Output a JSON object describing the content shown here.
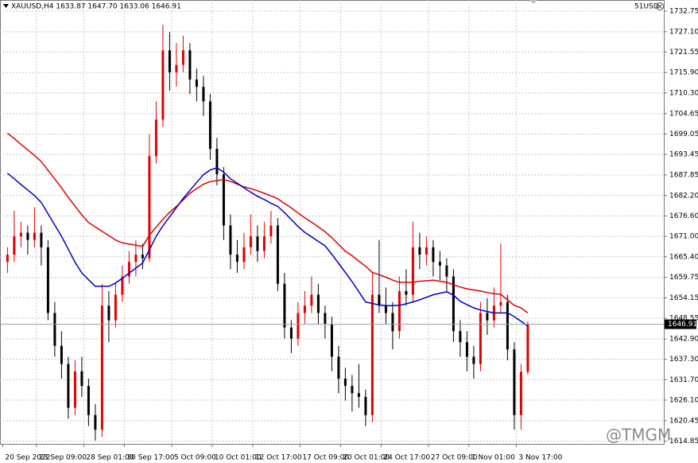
{
  "chart_data": {
    "type": "candlestick",
    "title": "XAUUSD,H4 1633.87 1647.70 1633.06 1646.91",
    "account_label": "51USD",
    "watermark": "@TMGM",
    "up_color": "#e00000",
    "down_color": "#000000",
    "grid": true,
    "ylim": [
      1614.1,
      1735.8
    ],
    "yticks": [
      1732.75,
      {
        "value": 1727.1,
        "label": "1727.10"
      },
      1721.55,
      {
        "value": 1715.9,
        "label": "1715.90"
      },
      {
        "value": 1710.3,
        "label": "1710.30"
      },
      1704.65,
      1699.05,
      1693.45,
      1687.85,
      {
        "value": 1682.2,
        "label": "1682.20"
      },
      {
        "value": 1676.6,
        "label": "1676.60"
      },
      {
        "value": 1671,
        "label": "1671.00"
      },
      {
        "value": 1665.4,
        "label": "1665.40"
      },
      1659.75,
      1654.15,
      1648.55,
      {
        "value": 1642.9,
        "label": "1642.90"
      },
      {
        "value": 1637.3,
        "label": "1637.30"
      },
      {
        "value": 1631.7,
        "label": "1631.70"
      },
      {
        "value": 1626.1,
        "label": "1626.10"
      },
      1620.45,
      1614.85
    ],
    "categories": [
      "20 Sep 2022",
      null,
      null,
      null,
      null,
      "23 Sep 09:00",
      null,
      null,
      null,
      null,
      null,
      null,
      "28 Sep 01:00",
      null,
      null,
      null,
      null,
      null,
      "30 Sep 17:00",
      null,
      null,
      null,
      null,
      null,
      null,
      "5 Oct 09:00",
      null,
      null,
      null,
      null,
      null,
      "10 Oct 01:00",
      null,
      null,
      null,
      null,
      null,
      "12 Oct 17:00",
      null,
      null,
      null,
      null,
      null,
      null,
      "17 Oct 09:00",
      null,
      null,
      null,
      null,
      null,
      "20 Oct 01:00",
      null,
      null,
      null,
      null,
      null,
      "24 Oct 17:00",
      null,
      null,
      null,
      null,
      null,
      null,
      "27 Oct 09:00",
      null,
      null,
      null,
      null,
      null,
      "1 Nov 01:00",
      null,
      null,
      null,
      null,
      null,
      null,
      "3 Nov 17:00",
      null
    ],
    "candles": [
      [
        1664,
        1668,
        1661,
        1666
      ],
      [
        1666,
        1678,
        1664,
        1671
      ],
      [
        1671,
        1675,
        1668,
        1672
      ],
      [
        1672,
        1674,
        1666,
        1670
      ],
      [
        1670,
        1679,
        1668,
        1672
      ],
      [
        1672,
        1674,
        1663,
        1668
      ],
      [
        1668,
        1670,
        1648,
        1650
      ],
      [
        1650,
        1653,
        1638,
        1641
      ],
      [
        1641,
        1645,
        1632,
        1636
      ],
      [
        1636,
        1638,
        1621,
        1624
      ],
      [
        1624,
        1637,
        1622,
        1634
      ],
      [
        1634,
        1638,
        1627,
        1630
      ],
      [
        1630,
        1632,
        1619,
        1622
      ],
      [
        1622,
        1625,
        1615,
        1618
      ],
      [
        1618,
        1658,
        1616,
        1652
      ],
      [
        1652,
        1656,
        1642,
        1648
      ],
      [
        1648,
        1658,
        1646,
        1655
      ],
      [
        1655,
        1663,
        1653,
        1660
      ],
      [
        1660,
        1667,
        1658,
        1664
      ],
      [
        1664,
        1670,
        1660,
        1666
      ],
      [
        1666,
        1669,
        1662,
        1665
      ],
      [
        1665,
        1699,
        1664,
        1693
      ],
      [
        1693,
        1708,
        1691,
        1703
      ],
      [
        1703,
        1729,
        1701,
        1722
      ],
      [
        1722,
        1727,
        1711,
        1716
      ],
      [
        1716,
        1724,
        1712,
        1718
      ],
      [
        1718,
        1726,
        1716,
        1722
      ],
      [
        1722,
        1724,
        1710,
        1714
      ],
      [
        1714,
        1717,
        1708,
        1712
      ],
      [
        1712,
        1715,
        1704,
        1708
      ],
      [
        1708,
        1710,
        1692,
        1695
      ],
      [
        1695,
        1698,
        1685,
        1688
      ],
      [
        1688,
        1690,
        1670,
        1674
      ],
      [
        1674,
        1677,
        1662,
        1666
      ],
      [
        1666,
        1670,
        1661,
        1664
      ],
      [
        1664,
        1672,
        1662,
        1668
      ],
      [
        1668,
        1677,
        1666,
        1671
      ],
      [
        1671,
        1674,
        1664,
        1667
      ],
      [
        1667,
        1675,
        1665,
        1671
      ],
      [
        1671,
        1678,
        1669,
        1674
      ],
      [
        1674,
        1676,
        1656,
        1658
      ],
      [
        1658,
        1661,
        1643,
        1646
      ],
      [
        1646,
        1648,
        1639,
        1643
      ],
      [
        1643,
        1653,
        1641,
        1650
      ],
      [
        1650,
        1656,
        1647,
        1652
      ],
      [
        1652,
        1660,
        1650,
        1655
      ],
      [
        1655,
        1658,
        1647,
        1650
      ],
      [
        1650,
        1652,
        1643,
        1647
      ],
      [
        1647,
        1649,
        1634,
        1638
      ],
      [
        1638,
        1641,
        1628,
        1632
      ],
      [
        1632,
        1635,
        1626,
        1630
      ],
      [
        1630,
        1633,
        1623,
        1628
      ],
      [
        1628,
        1636,
        1624,
        1627
      ],
      [
        1627,
        1629,
        1619,
        1622
      ],
      [
        1622,
        1661,
        1620,
        1655
      ],
      [
        1655,
        1670,
        1650,
        1652
      ],
      [
        1652,
        1657,
        1647,
        1650
      ],
      [
        1650,
        1653,
        1640,
        1645
      ],
      [
        1645,
        1660,
        1643,
        1656
      ],
      [
        1656,
        1662,
        1652,
        1655
      ],
      [
        1655,
        1675,
        1653,
        1668
      ],
      [
        1668,
        1672,
        1662,
        1666
      ],
      [
        1666,
        1671,
        1663,
        1668
      ],
      [
        1668,
        1670,
        1660,
        1664
      ],
      [
        1664,
        1667,
        1659,
        1663
      ],
      [
        1663,
        1665,
        1656,
        1660
      ],
      [
        1660,
        1662,
        1642,
        1645
      ],
      [
        1645,
        1648,
        1638,
        1642
      ],
      [
        1642,
        1645,
        1634,
        1638
      ],
      [
        1638,
        1641,
        1632,
        1636
      ],
      [
        1636,
        1653,
        1634,
        1650
      ],
      [
        1650,
        1654,
        1644,
        1648
      ],
      [
        1648,
        1657,
        1646,
        1652
      ],
      [
        1652,
        1669,
        1650,
        1653
      ],
      [
        1653,
        1655,
        1637,
        1640
      ],
      [
        1640,
        1642,
        1618,
        1622
      ],
      [
        1622,
        1636,
        1618,
        1633.87
      ],
      [
        1633.87,
        1647.7,
        1633.06,
        1646.91
      ]
    ],
    "series": [
      {
        "color": "#e00000",
        "values": [
          1699.3,
          1697.8,
          1696.2,
          1694.7,
          1693.2,
          1691.5,
          1689.1,
          1686.7,
          1684.3,
          1681.7,
          1679.3,
          1676.9,
          1674.8,
          1673.6,
          1672.4,
          1671.2,
          1670.0,
          1669.2,
          1668.9,
          1668.6,
          1668.2,
          1671.3,
          1673.5,
          1675.7,
          1677.6,
          1679.2,
          1681.0,
          1682.8,
          1684.1,
          1685.3,
          1686.0,
          1686.3,
          1686.6,
          1686.1,
          1685.3,
          1684.6,
          1684.1,
          1683.5,
          1682.8,
          1682.1,
          1681.3,
          1680.0,
          1678.8,
          1677.4,
          1676.1,
          1674.9,
          1673.6,
          1672.3,
          1670.6,
          1668.8,
          1666.9,
          1665.7,
          1664.2,
          1662.8,
          1661.1,
          1660.5,
          1659.8,
          1659.0,
          1658.4,
          1658.4,
          1658.4,
          1658.7,
          1658.8,
          1659.0,
          1658.7,
          1658.4,
          1657.7,
          1657.1,
          1656.6,
          1656.3,
          1656.0,
          1655.6,
          1655.3,
          1655.1,
          1653.6,
          1652.1,
          1651.4,
          1650.0
        ]
      },
      {
        "color": "#0000c8",
        "values": [
          1688.3,
          1686.8,
          1685.2,
          1683.7,
          1682.2,
          1680.3,
          1677.2,
          1674.1,
          1671.0,
          1667.5,
          1663.9,
          1661.0,
          1659.1,
          1657.3,
          1657.3,
          1657.3,
          1658.2,
          1659.5,
          1660.9,
          1662.3,
          1663.7,
          1667.3,
          1671.0,
          1673.9,
          1676.4,
          1678.9,
          1681.4,
          1683.6,
          1685.8,
          1687.9,
          1689.2,
          1689.8,
          1688.6,
          1686.8,
          1685.6,
          1684.3,
          1683.1,
          1682.0,
          1681.1,
          1680.1,
          1679.2,
          1677.5,
          1675.6,
          1673.7,
          1672.1,
          1670.9,
          1669.6,
          1668.4,
          1666.1,
          1663.6,
          1661.1,
          1658.6,
          1655.8,
          1653.0,
          1652.6,
          1652.2,
          1652.0,
          1652.0,
          1652.1,
          1652.5,
          1653.0,
          1653.6,
          1654.3,
          1655.0,
          1655.4,
          1655.8,
          1654.9,
          1653.2,
          1652.3,
          1651.4,
          1650.8,
          1650.4,
          1650.0,
          1650.0,
          1650.0,
          1649.0,
          1647.7,
          1646.4
        ]
      }
    ]
  }
}
